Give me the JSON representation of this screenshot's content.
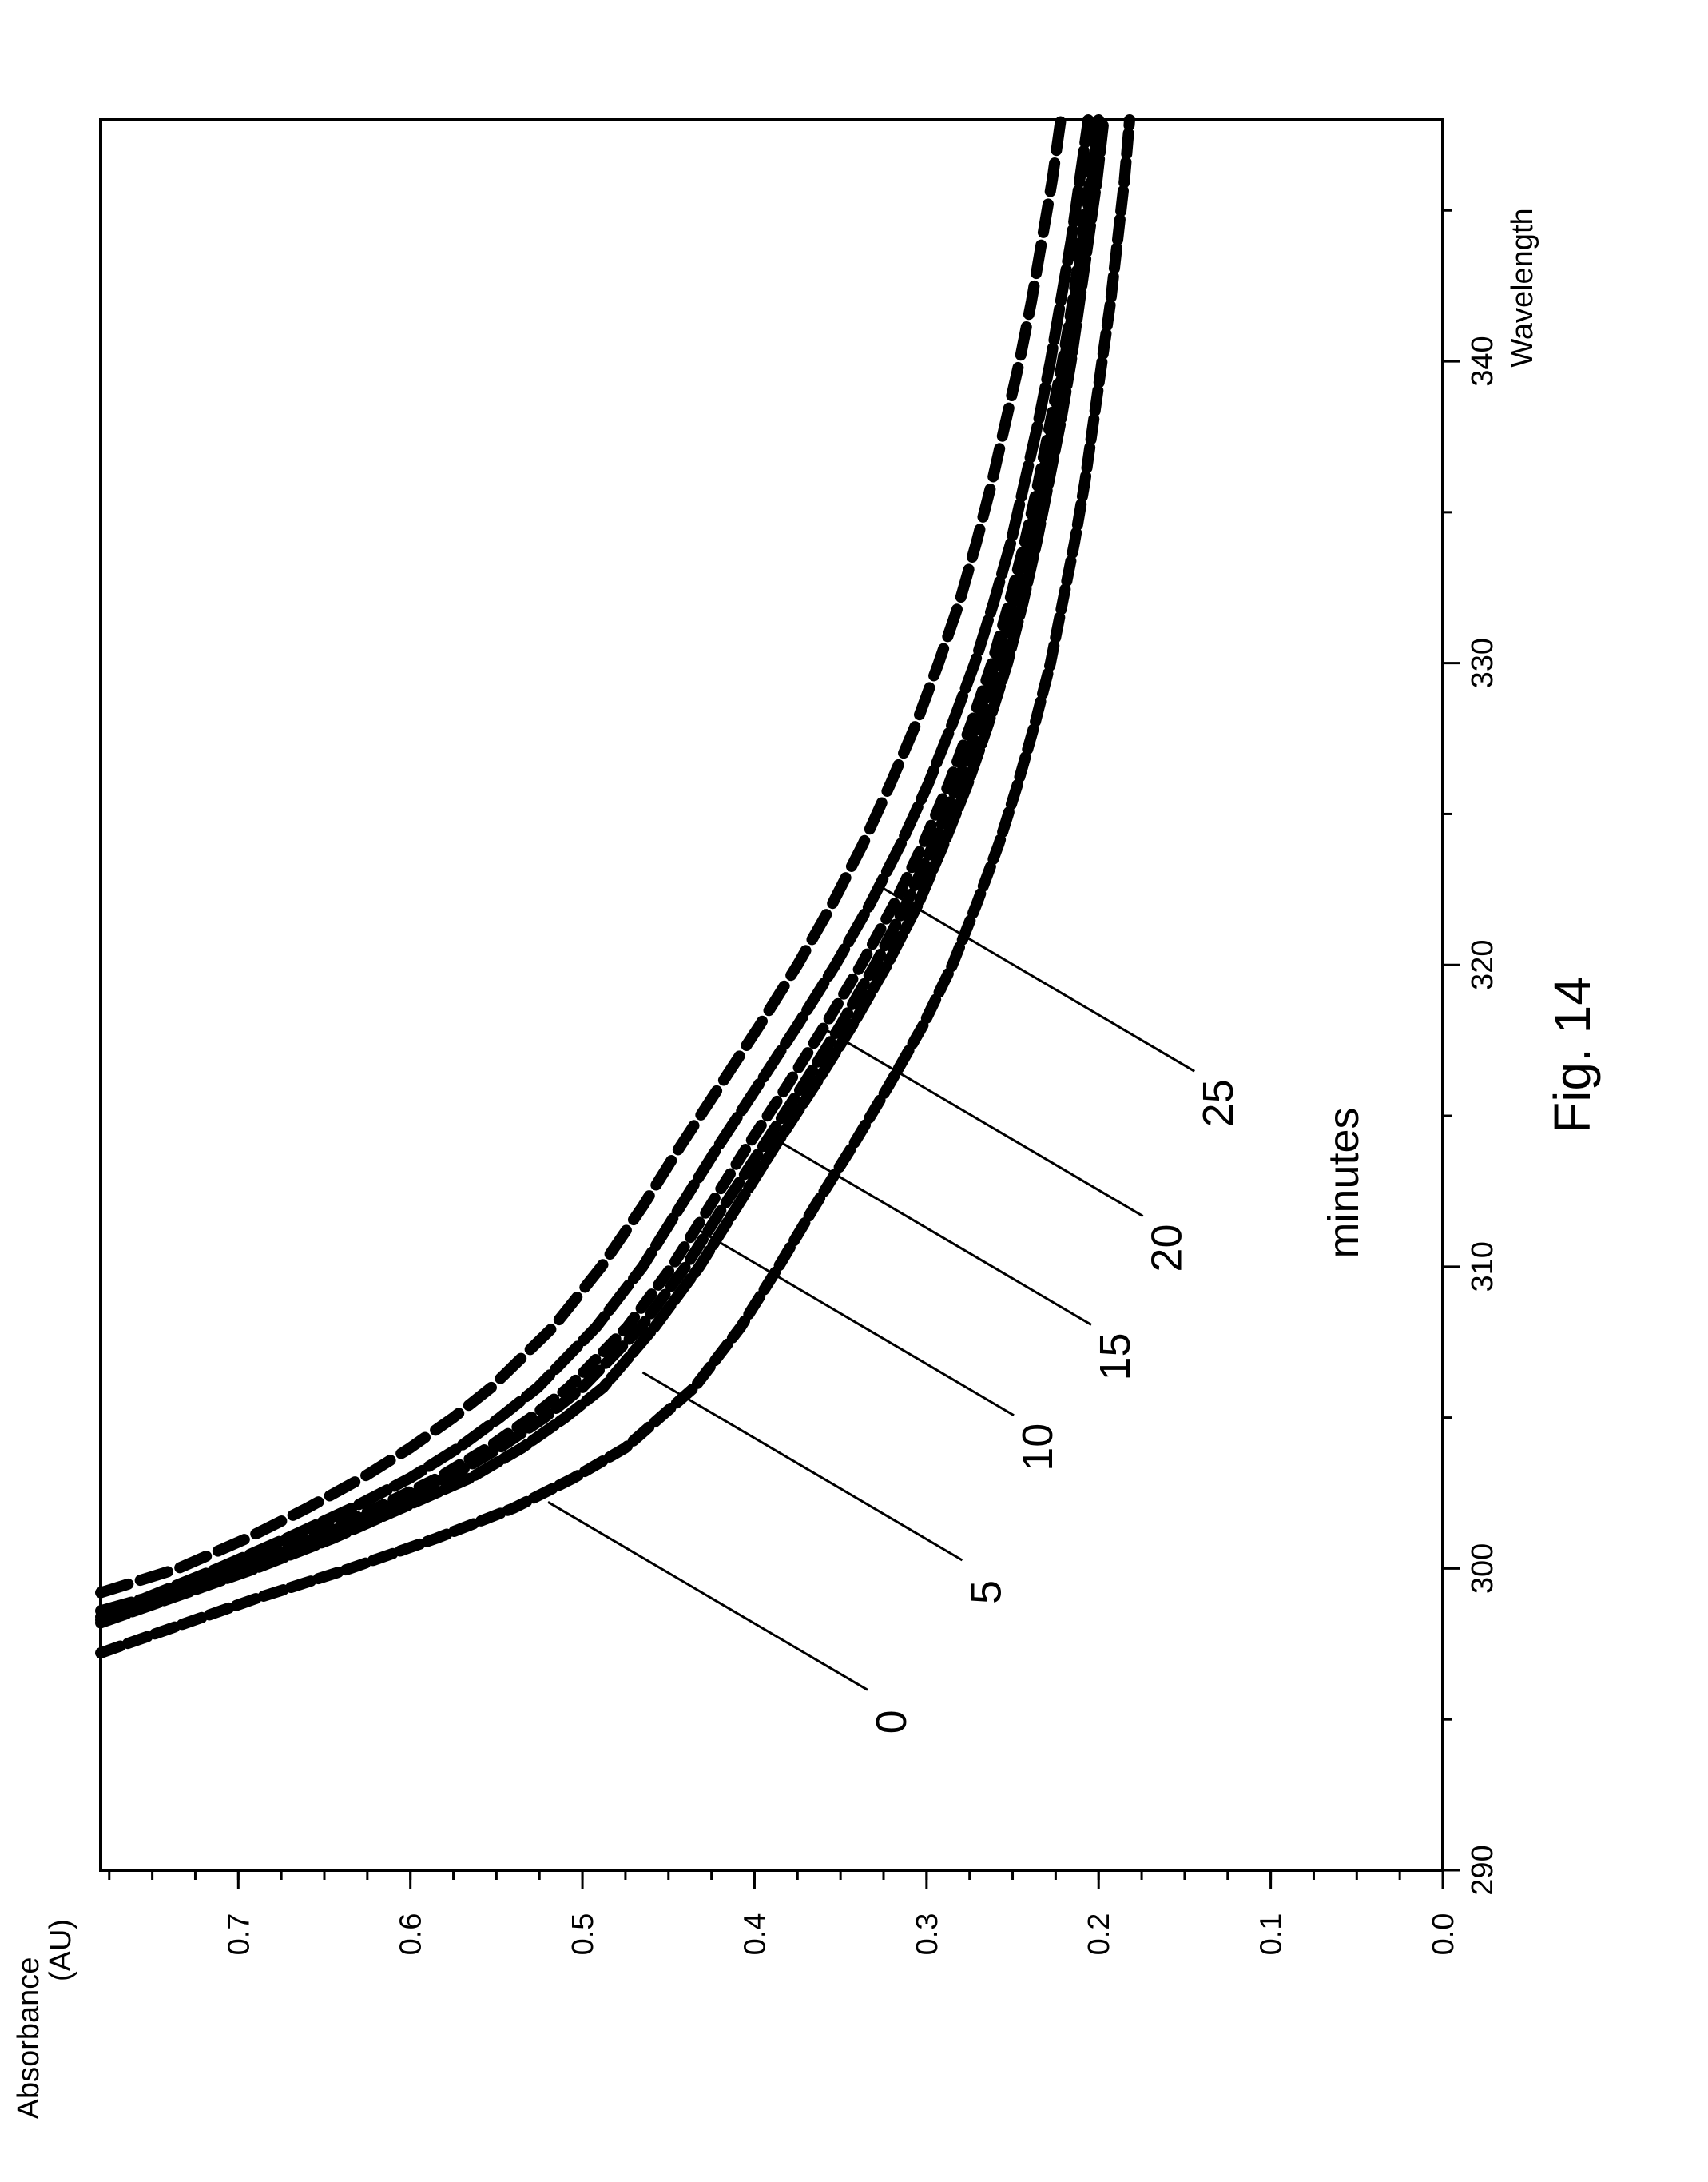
{
  "chart_data": {
    "type": "line",
    "orientation": "rotated-90",
    "title": "",
    "xlabel": "Wavelength",
    "ylabel": "Absorbance (AU)",
    "ylabel_lines": [
      "Absorbance",
      "(AU)"
    ],
    "xlim": [
      290,
      348
    ],
    "ylim": [
      0.0,
      0.78
    ],
    "x_ticks": [
      290,
      300,
      310,
      320,
      330,
      340
    ],
    "y_ticks": [
      0.0,
      0.1,
      0.2,
      0.3,
      0.4,
      0.5,
      0.6,
      0.7
    ],
    "y_tick_labels": [
      "0.0",
      "0.1",
      "0.2",
      "0.3",
      "0.4",
      "0.5",
      "0.6",
      "0.7"
    ],
    "grid": false,
    "annotation_group_label": "minutes",
    "series": [
      {
        "name": "0",
        "label_x": 302.2,
        "label_y": 0.52,
        "x": [
          297.2,
          298,
          299,
          300,
          301,
          302,
          303,
          304,
          305,
          306,
          308,
          310,
          312,
          314,
          316,
          318,
          320,
          322,
          324,
          326,
          328,
          330,
          332,
          334,
          336,
          338,
          340,
          342,
          344,
          346,
          348
        ],
        "y": [
          0.78,
          0.74,
          0.69,
          0.635,
          0.585,
          0.54,
          0.505,
          0.475,
          0.455,
          0.435,
          0.408,
          0.386,
          0.365,
          0.343,
          0.322,
          0.302,
          0.285,
          0.271,
          0.258,
          0.247,
          0.237,
          0.228,
          0.221,
          0.214,
          0.208,
          0.203,
          0.198,
          0.193,
          0.189,
          0.185,
          0.182
        ]
      },
      {
        "name": "5",
        "label_x": 306.5,
        "label_y": 0.465,
        "x": [
          298.2,
          299,
          300,
          301,
          302,
          303,
          304,
          305,
          306,
          308,
          310,
          312,
          314,
          316,
          318,
          320,
          322,
          324,
          326,
          328,
          330,
          332,
          334,
          336,
          338,
          340,
          342,
          344,
          346,
          348
        ],
        "y": [
          0.78,
          0.74,
          0.69,
          0.645,
          0.605,
          0.565,
          0.535,
          0.51,
          0.488,
          0.458,
          0.432,
          0.41,
          0.388,
          0.365,
          0.343,
          0.323,
          0.305,
          0.29,
          0.276,
          0.264,
          0.253,
          0.244,
          0.236,
          0.229,
          0.222,
          0.216,
          0.211,
          0.206,
          0.201,
          0.197
        ]
      },
      {
        "name": "10",
        "label_x": 311.3,
        "label_y": 0.435,
        "x": [
          298.4,
          299,
          300,
          301,
          302,
          303,
          304,
          305,
          306,
          308,
          310,
          312,
          314,
          316,
          318,
          320,
          322,
          324,
          326,
          328,
          330,
          332,
          334,
          336,
          338,
          340,
          342,
          344,
          346,
          348
        ],
        "y": [
          0.78,
          0.745,
          0.7,
          0.655,
          0.615,
          0.578,
          0.548,
          0.522,
          0.5,
          0.466,
          0.44,
          0.418,
          0.395,
          0.372,
          0.35,
          0.33,
          0.312,
          0.296,
          0.282,
          0.27,
          0.259,
          0.249,
          0.241,
          0.233,
          0.226,
          0.22,
          0.214,
          0.209,
          0.204,
          0.2
        ]
      },
      {
        "name": "15",
        "label_x": 314.3,
        "label_y": 0.39,
        "x": [
          298.3,
          299,
          300,
          301,
          302,
          303,
          304,
          305,
          306,
          308,
          310,
          312,
          314,
          316,
          318,
          320,
          322,
          324,
          326,
          328,
          330,
          332,
          334,
          336,
          338,
          340,
          342,
          344,
          346,
          348
        ],
        "y": [
          0.78,
          0.748,
          0.702,
          0.66,
          0.62,
          0.584,
          0.555,
          0.53,
          0.508,
          0.474,
          0.448,
          0.426,
          0.404,
          0.381,
          0.359,
          0.338,
          0.319,
          0.302,
          0.287,
          0.274,
          0.262,
          0.252,
          0.243,
          0.235,
          0.228,
          0.221,
          0.215,
          0.21,
          0.205,
          0.2
        ]
      },
      {
        "name": "20",
        "label_x": 317.9,
        "label_y": 0.36,
        "x": [
          298.6,
          299,
          300,
          301,
          302,
          303,
          304,
          305,
          306,
          308,
          310,
          312,
          314,
          316,
          318,
          320,
          322,
          324,
          326,
          328,
          330,
          332,
          334,
          336,
          338,
          340,
          342,
          344,
          346,
          348
        ],
        "y": [
          0.78,
          0.755,
          0.712,
          0.672,
          0.634,
          0.6,
          0.572,
          0.548,
          0.526,
          0.492,
          0.465,
          0.443,
          0.421,
          0.398,
          0.375,
          0.353,
          0.333,
          0.315,
          0.299,
          0.285,
          0.272,
          0.261,
          0.251,
          0.243,
          0.235,
          0.228,
          0.222,
          0.216,
          0.211,
          0.206
        ]
      },
      {
        "name": "25",
        "label_x": 322.7,
        "label_y": 0.33,
        "x": [
          299.2,
          300,
          301,
          302,
          303,
          304,
          305,
          306,
          308,
          310,
          312,
          314,
          316,
          318,
          320,
          322,
          324,
          326,
          328,
          330,
          332,
          334,
          336,
          338,
          340,
          342,
          344,
          346,
          348
        ],
        "y": [
          0.78,
          0.735,
          0.695,
          0.66,
          0.628,
          0.6,
          0.575,
          0.553,
          0.517,
          0.489,
          0.465,
          0.443,
          0.42,
          0.397,
          0.375,
          0.355,
          0.337,
          0.321,
          0.306,
          0.293,
          0.281,
          0.271,
          0.262,
          0.254,
          0.246,
          0.239,
          0.233,
          0.227,
          0.222
        ]
      }
    ]
  },
  "figure": {
    "caption": "Fig. 14"
  },
  "colors": {
    "ink": "#000000",
    "background": "#ffffff"
  }
}
